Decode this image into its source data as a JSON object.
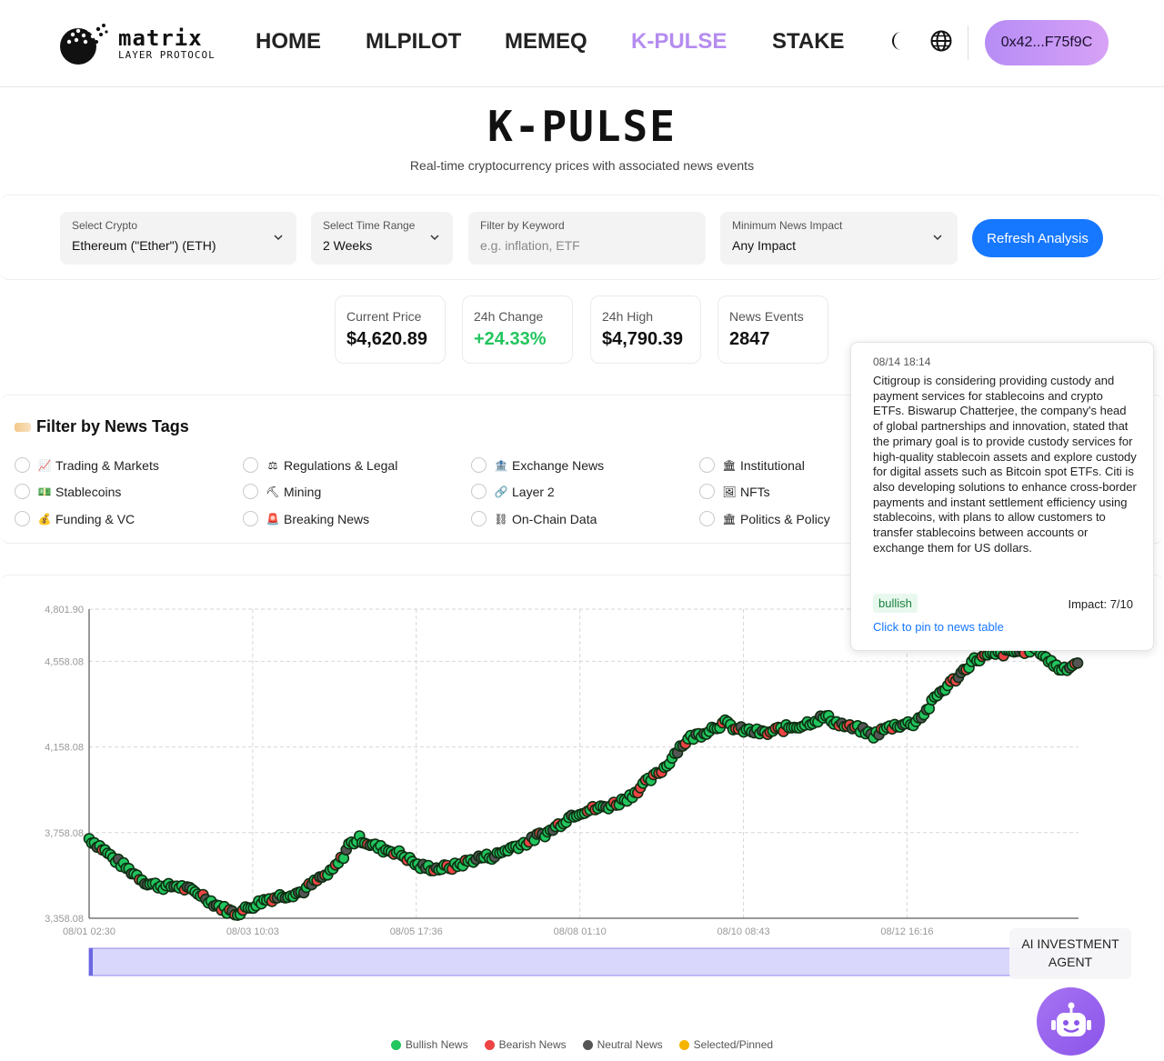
{
  "nav": {
    "logo_word": "matrix",
    "logo_sub": "LAYER PROTOCOL",
    "items": [
      {
        "label": "HOME",
        "active": false
      },
      {
        "label": "MLPILOT",
        "active": false
      },
      {
        "label": "MEMEQ",
        "active": false
      },
      {
        "label": "K-PULSE",
        "active": true
      },
      {
        "label": "STAKE",
        "active": false
      }
    ],
    "icons": [
      "moon-icon",
      "globe-icon"
    ],
    "wallet": "0x42...F75f9C"
  },
  "hero": {
    "title": "K-PULSE",
    "subtitle": "Real-time cryptocurrency prices with associated news events"
  },
  "filters": {
    "crypto": {
      "label": "Select Crypto",
      "value": "Ethereum (\"Ether\") (ETH)"
    },
    "time_range": {
      "label": "Select Time Range",
      "value": "2 Weeks"
    },
    "keyword": {
      "label": "Filter by Keyword",
      "value": "",
      "placeholder": "e.g. inflation, ETF"
    },
    "impact": {
      "label": "Minimum News Impact",
      "value": "Any Impact"
    },
    "refresh_label": "Refresh Analysis"
  },
  "stats": [
    {
      "label": "Current Price",
      "value": "$4,620.89",
      "tone": "normal"
    },
    {
      "label": "24h Change",
      "value": "+24.33%",
      "tone": "positive"
    },
    {
      "label": "24h High",
      "value": "$4,790.39",
      "tone": "normal"
    },
    {
      "label": "News Events",
      "value": "2847",
      "tone": "normal"
    }
  ],
  "tags": {
    "title": "Filter by News Tags",
    "items": [
      {
        "label": "Trading & Markets",
        "icon": "chart-up-icon",
        "glyph": "📈"
      },
      {
        "label": "Regulations & Legal",
        "icon": "scales-icon",
        "glyph": "⚖"
      },
      {
        "label": "Exchange News",
        "icon": "exchange-icon",
        "glyph": "🏦"
      },
      {
        "label": "Institutional",
        "icon": "institution-icon",
        "glyph": "🏛"
      },
      {
        "label": "Stablecoins",
        "icon": "money-icon",
        "glyph": "💵"
      },
      {
        "label": "Mining",
        "icon": "pickaxe-icon",
        "glyph": "⛏"
      },
      {
        "label": "Layer 2",
        "icon": "link-icon",
        "glyph": "🔗"
      },
      {
        "label": "NFTs",
        "icon": "picture-icon",
        "glyph": "🖼"
      },
      {
        "label": "Funding & VC",
        "icon": "money-bag-icon",
        "glyph": "💰"
      },
      {
        "label": "Breaking News",
        "icon": "siren-icon",
        "glyph": "🚨"
      },
      {
        "label": "On-Chain Data",
        "icon": "chain-icon",
        "glyph": "⛓"
      },
      {
        "label": "Politics & Policy",
        "icon": "capitol-icon",
        "glyph": "🏛"
      }
    ]
  },
  "tooltip": {
    "time": "08/14 18:14",
    "text": "Citigroup is considering providing custody and payment services for stablecoins and crypto ETFs. Biswarup Chatterjee, the company's head of global partnerships and innovation, stated that the primary goal is to provide custody services for high-quality stablecoin assets and explore custody for digital assets such as Bitcoin spot ETFs. Citi is also developing solutions to enhance cross-border payments and instant settlement efficiency using stablecoins, with plans to allow customers to transfer stablecoins between accounts or exchange them for US dollars.",
    "sentiment": "bullish",
    "impact": "Impact: 7/10",
    "link": "Click to pin to news table"
  },
  "agent": {
    "label": "AI INVESTMENT AGENT"
  },
  "colors": {
    "bullish": "#22c55e",
    "bearish": "#ef4444",
    "neutral": "#555555",
    "selected": "#f5b400",
    "accent": "#1677ff",
    "nav_active": "#b58cf0"
  },
  "chart_data": {
    "type": "scatter",
    "title": "",
    "xlabel": "",
    "ylabel": "",
    "y_ticks": [
      "4,801.90",
      "4,558.08",
      "4,158.08",
      "3,758.08",
      "3,358.08"
    ],
    "y_tick_values": [
      4801.9,
      4558.08,
      4158.08,
      3758.08,
      3358.08
    ],
    "ylim": [
      3358.08,
      4801.9
    ],
    "x_ticks": [
      "08/01 02:30",
      "08/03 10:03",
      "08/05 17:36",
      "08/08 01:10",
      "08/10 08:43",
      "08/12 16:16"
    ],
    "x_tick_hours": [
      0,
      55.55,
      111.1,
      166.67,
      222.22,
      277.77
    ],
    "xlim_hours": [
      0,
      336
    ],
    "grid": true,
    "legend_position": "bottom-center",
    "series": [
      {
        "name": "Bullish News",
        "color": "#22c55e"
      },
      {
        "name": "Bearish News",
        "color": "#ef4444"
      },
      {
        "name": "Neutral News",
        "color": "#555555"
      },
      {
        "name": "Selected/Pinned",
        "color": "#f5b400"
      }
    ],
    "price_path": [
      [
        0,
        3730
      ],
      [
        4,
        3690
      ],
      [
        8,
        3640
      ],
      [
        12,
        3600
      ],
      [
        16,
        3560
      ],
      [
        20,
        3520
      ],
      [
        26,
        3505
      ],
      [
        30,
        3510
      ],
      [
        34,
        3490
      ],
      [
        38,
        3470
      ],
      [
        42,
        3430
      ],
      [
        46,
        3400
      ],
      [
        50,
        3380
      ],
      [
        56,
        3420
      ],
      [
        60,
        3445
      ],
      [
        66,
        3465
      ],
      [
        72,
        3480
      ],
      [
        78,
        3540
      ],
      [
        82,
        3570
      ],
      [
        86,
        3640
      ],
      [
        88,
        3700
      ],
      [
        92,
        3730
      ],
      [
        96,
        3700
      ],
      [
        100,
        3680
      ],
      [
        104,
        3670
      ],
      [
        108,
        3640
      ],
      [
        112,
        3600
      ],
      [
        118,
        3590
      ],
      [
        124,
        3600
      ],
      [
        128,
        3620
      ],
      [
        132,
        3640
      ],
      [
        138,
        3650
      ],
      [
        142,
        3680
      ],
      [
        146,
        3700
      ],
      [
        150,
        3720
      ],
      [
        152,
        3740
      ],
      [
        156,
        3760
      ],
      [
        160,
        3800
      ],
      [
        164,
        3840
      ],
      [
        168,
        3860
      ],
      [
        172,
        3870
      ],
      [
        176,
        3880
      ],
      [
        180,
        3900
      ],
      [
        184,
        3930
      ],
      [
        188,
        3980
      ],
      [
        192,
        4020
      ],
      [
        196,
        4070
      ],
      [
        200,
        4150
      ],
      [
        204,
        4200
      ],
      [
        208,
        4220
      ],
      [
        212,
        4250
      ],
      [
        216,
        4270
      ],
      [
        220,
        4240
      ],
      [
        226,
        4230
      ],
      [
        230,
        4220
      ],
      [
        234,
        4240
      ],
      [
        238,
        4250
      ],
      [
        242,
        4260
      ],
      [
        246,
        4280
      ],
      [
        250,
        4300
      ],
      [
        254,
        4270
      ],
      [
        258,
        4250
      ],
      [
        262,
        4240
      ],
      [
        266,
        4210
      ],
      [
        270,
        4240
      ],
      [
        274,
        4260
      ],
      [
        280,
        4270
      ],
      [
        284,
        4320
      ],
      [
        288,
        4400
      ],
      [
        292,
        4450
      ],
      [
        296,
        4500
      ],
      [
        300,
        4560
      ],
      [
        304,
        4580
      ],
      [
        308,
        4590
      ],
      [
        312,
        4600
      ],
      [
        318,
        4610
      ],
      [
        322,
        4620
      ],
      [
        326,
        4560
      ],
      [
        330,
        4520
      ],
      [
        334,
        4540
      ],
      [
        336,
        4560
      ]
    ]
  }
}
